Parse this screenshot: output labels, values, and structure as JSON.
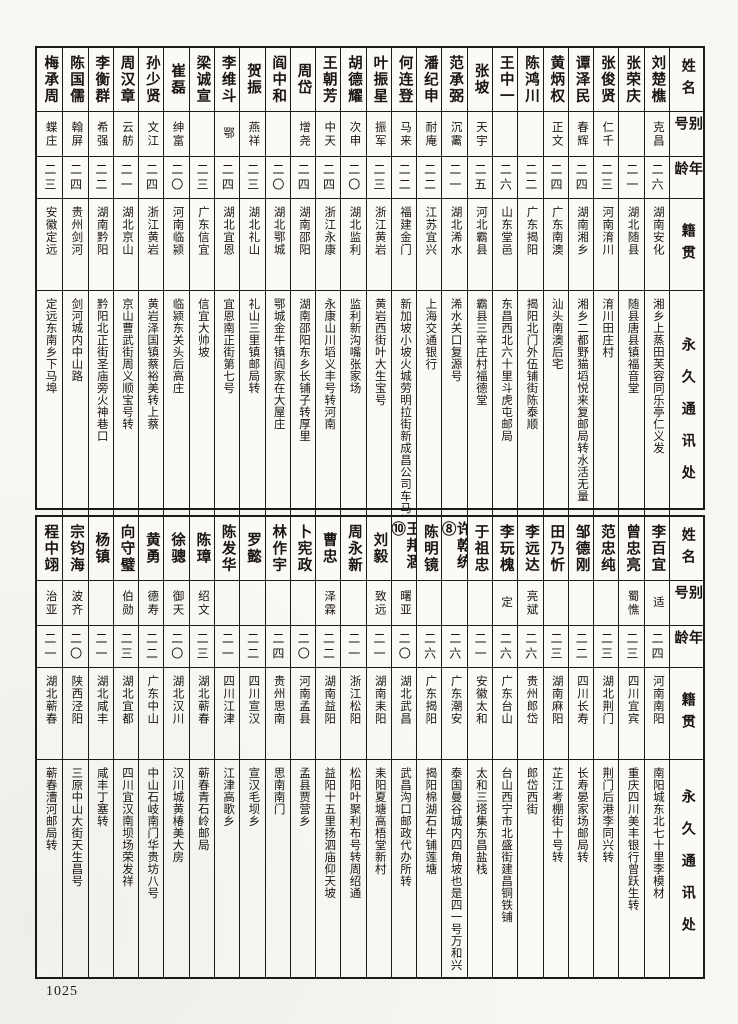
{
  "page": {
    "number": "1025"
  },
  "headers": {
    "name": "姓名",
    "alias": "别号",
    "age": "年龄",
    "native": "籍贯",
    "address": "永久通讯处"
  },
  "tables": [
    {
      "entries": [
        {
          "name": "刘楚樵",
          "alias": "克昌",
          "age": "二六",
          "native": "湖南安化",
          "address": "湘乡上蒸田芙容同乐亭仁义发"
        },
        {
          "name": "张荣庆",
          "alias": "",
          "age": "二一",
          "native": "湖北随县",
          "address": "随县唐县镇福音堂"
        },
        {
          "name": "张俊贤",
          "alias": "仁千",
          "age": "二三",
          "native": "河南淯川",
          "address": "淯川田庄村"
        },
        {
          "name": "谭泽民",
          "alias": "春辉",
          "age": "二四",
          "native": "湖南湘乡",
          "address": "湘乡二都野猫塪悦来复邮局转水活无量"
        },
        {
          "name": "黄炳权",
          "alias": "正文",
          "age": "二四",
          "native": "广东南澳",
          "address": "汕头南澳后宅"
        },
        {
          "name": "陈鸿川",
          "alias": "",
          "age": "二二",
          "native": "广东揭阳",
          "address": "揭阳北门外伍铺街陈泰顺"
        },
        {
          "name": "王中一",
          "alias": "",
          "age": "二六",
          "native": "山东堂邑",
          "address": "东昌西北六十里斗虎屯邮局"
        },
        {
          "name": "张坡",
          "alias": "天宇",
          "age": "二五",
          "native": "河北霸县",
          "address": "霸县三辛庄村福德堂"
        },
        {
          "name": "范承弼",
          "alias": "沉霱",
          "age": "二一",
          "native": "湖北浠水",
          "address": "浠水关口复源号"
        },
        {
          "name": "潘纪申",
          "alias": "耐庵",
          "age": "二二",
          "native": "江苏宜兴",
          "address": "上海交通银行"
        },
        {
          "name": "何连登",
          "alias": "马来",
          "age": "二二",
          "native": "福建金门",
          "address": "新加坡小坡火城劳明拉街新成昌公司车马螺转"
        },
        {
          "name": "叶振星",
          "alias": "振军",
          "age": "二三",
          "native": "浙江黄岩",
          "address": "黄岩西街叶大生宝号"
        },
        {
          "name": "胡德耀",
          "alias": "次申",
          "age": "二〇",
          "native": "湖北监利",
          "address": "监利新沟嘴张家场"
        },
        {
          "name": "王朝芳",
          "alias": "中天",
          "age": "二四",
          "native": "浙江永康",
          "address": "永康山川塪义丰号转河南"
        },
        {
          "name": "周岱",
          "alias": "增尧",
          "age": "二四",
          "native": "湖南邵阳",
          "address": "湖南邵阳东乡长铺子转厚里"
        },
        {
          "name": "阎中和",
          "alias": "",
          "age": "二〇",
          "native": "湖北鄂城",
          "address": "鄂城金牛镇阎家在大屋庄"
        },
        {
          "name": "贺振",
          "alias": "燕祥",
          "age": "二三",
          "native": "湖北礼山",
          "address": "礼山三里镇邮局转"
        },
        {
          "name": "李维斗",
          "alias": "鄂",
          "age": "二四",
          "native": "湖北宜恩",
          "address": "宜恩南正街第七号"
        },
        {
          "name": "梁诚宣",
          "alias": "",
          "age": "二三",
          "native": "广东信宜",
          "address": "信宜大帅坡"
        },
        {
          "name": "崔磊",
          "alias": "绅富",
          "age": "二〇",
          "native": "河南临颍",
          "address": "临颍东关头后高庄"
        },
        {
          "name": "孙少贤",
          "alias": "文江",
          "age": "二四",
          "native": "浙江黄岩",
          "address": "黄岩泽国镇蔡裕美转上蔡"
        },
        {
          "name": "周汉章",
          "alias": "云舫",
          "age": "二一",
          "native": "湖北京山",
          "address": "京山曹武街周义顺宝号转"
        },
        {
          "name": "李衡群",
          "alias": "希强",
          "age": "二二",
          "native": "湖南黔阳",
          "address": "黔阳北正街圣庙旁火神巷口"
        },
        {
          "name": "陈国儒",
          "alias": "翰屏",
          "age": "二四",
          "native": "贵州剑河",
          "address": "剑河城内中山路"
        },
        {
          "name": "梅承周",
          "alias": "蝶庄",
          "age": "二三",
          "native": "安徽定远",
          "address": "定远东南乡下马埠"
        }
      ]
    },
    {
      "entries": [
        {
          "name": "李百宜",
          "alias": "适",
          "age": "二四",
          "native": "河南南阳",
          "address": "南阳城东北七十里李模材"
        },
        {
          "name": "曾忠亮",
          "alias": "蜀憔",
          "age": "二三",
          "native": "四川宜宾",
          "address": "重庆四川美丰银行曾跃生转"
        },
        {
          "name": "范忠纯",
          "alias": "",
          "age": "二三",
          "native": "湖北荆门",
          "address": "荆门后港李同兴转"
        },
        {
          "name": "邹德刚",
          "alias": "",
          "age": "二二",
          "native": "四川长寿",
          "address": "长寿晏家场邮局转"
        },
        {
          "name": "田乃忻",
          "alias": "",
          "age": "二三",
          "native": "湖南麻阳",
          "address": "芷江考棚街十号转"
        },
        {
          "name": "李远达",
          "alias": "亮斌",
          "age": "二六",
          "native": "贵州郎岱",
          "address": "郎岱西街"
        },
        {
          "name": "李玩槐",
          "alias": "定",
          "age": "二六",
          "native": "广东台山",
          "address": "台山西宁市北盛街建昌铜铁铺"
        },
        {
          "name": "于祖忠",
          "alias": "",
          "age": "二一",
          "native": "安徽太和",
          "address": "太和三塔集东昌盐栈"
        },
        {
          "name": "许乾统⑧",
          "alias": "",
          "age": "二六",
          "native": "广东潮安",
          "address": "泰国曼谷城内四角坡也是四一号万和兴"
        },
        {
          "name": "陈明镜",
          "alias": "",
          "age": "二六",
          "native": "广东揭阳",
          "address": "揭阳棉湖石牛铺莲塘"
        },
        {
          "name": "王邦涸⑩",
          "alias": "曙亚",
          "age": "二〇",
          "native": "湖北武昌",
          "address": "武昌沟口邮政代办所转"
        },
        {
          "name": "刘毅",
          "alias": "致远",
          "age": "二一",
          "native": "湖南耒阳",
          "address": "耒阳夏塘高梧堂新村"
        },
        {
          "name": "周永新",
          "alias": "",
          "age": "二一",
          "native": "浙江松阳",
          "address": "松阳叶聚利布号转周绍通"
        },
        {
          "name": "曹忠",
          "alias": "泽霖",
          "age": "二二",
          "native": "湖南益阳",
          "address": "益阳十五里扬泗庙仰天坡"
        },
        {
          "name": "卜宪政",
          "alias": "",
          "age": "二〇",
          "native": "河南孟县",
          "address": "孟县贾营乡"
        },
        {
          "name": "林作宇",
          "alias": "",
          "age": "二四",
          "native": "贵州思南",
          "address": "思南南门"
        },
        {
          "name": "罗懿",
          "alias": "",
          "age": "二二",
          "native": "四川宣汉",
          "address": "宣汉毛坝乡"
        },
        {
          "name": "陈发华",
          "alias": "",
          "age": "二一",
          "native": "四川江津",
          "address": "江津高歌乡"
        },
        {
          "name": "陈璋",
          "alias": "绍文",
          "age": "二三",
          "native": "湖北蕲春",
          "address": "蕲春青石岭邮局"
        },
        {
          "name": "徐骢",
          "alias": "御天",
          "age": "二〇",
          "native": "湖北汉川",
          "address": "汉川城黄椿美大房"
        },
        {
          "name": "黄勇",
          "alias": "德寿",
          "age": "二二",
          "native": "广东中山",
          "address": "中山石岐南门华贵坊八号"
        },
        {
          "name": "向守璧",
          "alias": "伯勋",
          "age": "二三",
          "native": "湖北宜都",
          "address": "四川宜汉南坝场荣发祥"
        },
        {
          "name": "杨镇",
          "alias": "",
          "age": "二一",
          "native": "湖北咸丰",
          "address": "咸丰丁塞转"
        },
        {
          "name": "宗钧海",
          "alias": "波齐",
          "age": "二〇",
          "native": "陕西泾阳",
          "address": "三原中山大街天生昌号"
        },
        {
          "name": "程中翊",
          "alias": "治亚",
          "age": "二一",
          "native": "湖北蕲春",
          "address": "蕲春漕河邮局转"
        }
      ]
    }
  ]
}
